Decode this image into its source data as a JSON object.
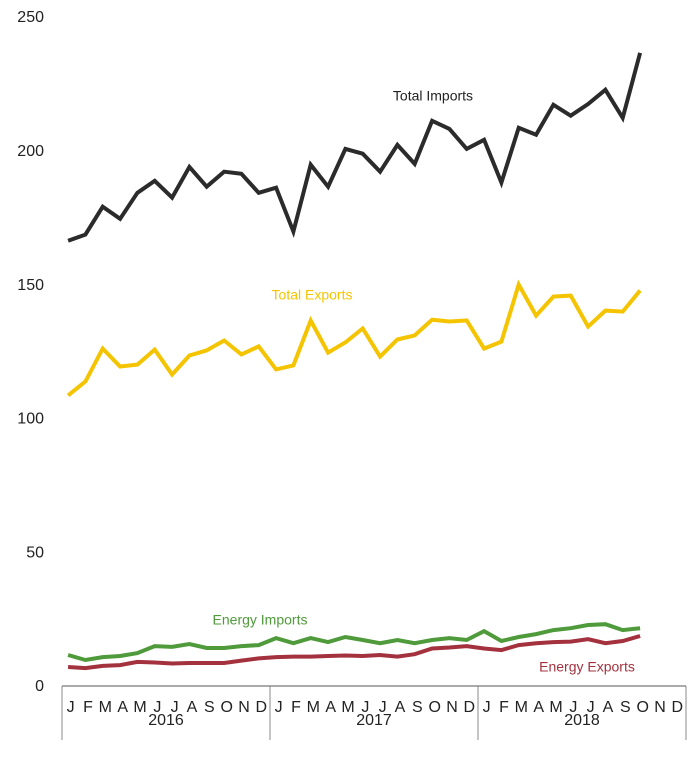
{
  "chart_data": {
    "type": "line",
    "categories": [
      "J",
      "F",
      "M",
      "A",
      "M",
      "J",
      "J",
      "A",
      "S",
      "O",
      "N",
      "D",
      "J",
      "F",
      "M",
      "A",
      "M",
      "J",
      "J",
      "A",
      "S",
      "O",
      "N",
      "D",
      "J",
      "F",
      "M",
      "A",
      "M",
      "J",
      "J",
      "A",
      "S",
      "O",
      "N",
      "D"
    ],
    "years": [
      "2016",
      "2017",
      "2018"
    ],
    "ylim": [
      0,
      250
    ],
    "yticks": [
      0,
      50,
      100,
      150,
      200,
      250
    ],
    "series": [
      {
        "name": "Total Imports",
        "color": "#2b2b2b",
        "values": [
          166.4,
          168.7,
          179.1,
          174.6,
          184.3,
          188.8,
          182.5,
          194.0,
          186.6,
          192.2,
          191.4,
          184.3,
          186.2,
          169.8,
          194.8,
          186.6,
          200.7,
          198.9,
          192.2,
          202.2,
          195.1,
          211.2,
          208.2,
          200.7,
          204.1,
          188.1,
          208.6,
          206.0,
          217.2,
          213.1,
          217.5,
          222.8,
          212.3,
          236.6,
          null,
          null
        ]
      },
      {
        "name": "Total Exports",
        "color": "#f5c400",
        "values": [
          108.6,
          113.8,
          126.1,
          119.4,
          120.1,
          125.7,
          116.4,
          123.5,
          125.4,
          129.1,
          123.9,
          126.9,
          118.3,
          119.8,
          136.6,
          124.6,
          128.4,
          133.6,
          123.1,
          129.5,
          131.0,
          136.9,
          136.2,
          136.6,
          126.1,
          128.7,
          150.0,
          138.4,
          145.5,
          145.9,
          134.3,
          140.3,
          139.9,
          147.8,
          null,
          null
        ]
      },
      {
        "name": "Energy Imports",
        "color": "#4f9a3a",
        "values": [
          11.6,
          9.7,
          10.8,
          11.2,
          12.3,
          14.9,
          14.6,
          15.7,
          14.2,
          14.2,
          14.9,
          15.3,
          17.9,
          16.0,
          17.9,
          16.4,
          18.3,
          17.2,
          16.0,
          17.2,
          16.0,
          17.2,
          17.9,
          17.2,
          20.5,
          16.8,
          18.3,
          19.4,
          20.9,
          21.6,
          22.8,
          23.1,
          20.9,
          21.6,
          null,
          null
        ]
      },
      {
        "name": "Energy Exports",
        "color": "#a3323e",
        "values": [
          7.1,
          6.7,
          7.5,
          7.8,
          9.0,
          8.8,
          8.4,
          8.6,
          8.6,
          8.6,
          9.5,
          10.3,
          10.8,
          11.0,
          11.0,
          11.2,
          11.4,
          11.2,
          11.6,
          11.0,
          11.9,
          14.0,
          14.4,
          14.9,
          14.0,
          13.4,
          15.3,
          16.0,
          16.4,
          16.6,
          17.5,
          16.0,
          16.8,
          18.7,
          null,
          null
        ]
      }
    ]
  }
}
